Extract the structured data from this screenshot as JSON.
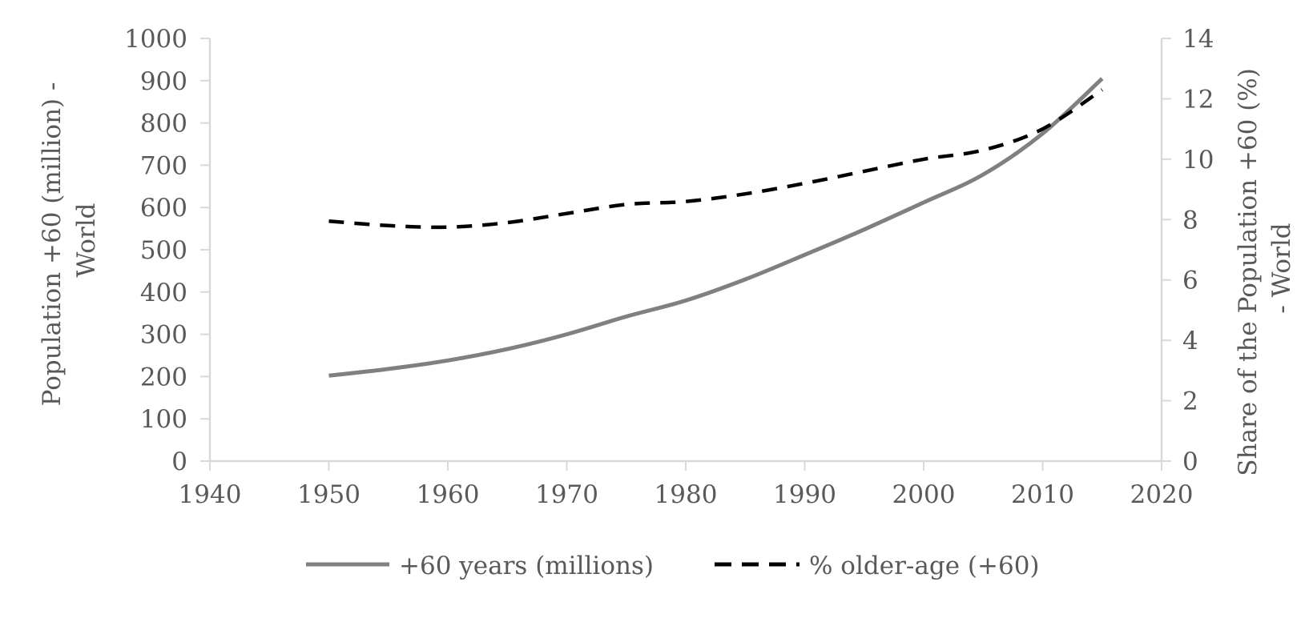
{
  "chart_data": {
    "type": "line",
    "title": "",
    "x_axis": {
      "label": "",
      "range": [
        1940,
        2020
      ],
      "ticks": [
        1940,
        1950,
        1960,
        1970,
        1980,
        1990,
        2000,
        2010,
        2020
      ]
    },
    "y_axis_left": {
      "label_lines": [
        "Population +60 (million) -",
        "World"
      ],
      "range": [
        0,
        1000
      ],
      "ticks": [
        0,
        100,
        200,
        300,
        400,
        500,
        600,
        700,
        800,
        900,
        1000
      ]
    },
    "y_axis_right": {
      "label_lines": [
        "Share of the Population +60 (%)",
        "- World"
      ],
      "range": [
        0,
        14
      ],
      "ticks": [
        0,
        2,
        4,
        6,
        8,
        10,
        12,
        14
      ]
    },
    "grid": false,
    "legend_position": "bottom",
    "series": [
      {
        "name": "+60 years (millions)",
        "axis": "left",
        "style": "solid",
        "color": "#808080",
        "x": [
          1950,
          1955,
          1960,
          1965,
          1970,
          1975,
          1980,
          1985,
          1990,
          1995,
          2000,
          2005,
          2010,
          2015
        ],
        "values": [
          202,
          218,
          238,
          265,
          300,
          342,
          380,
          430,
          488,
          548,
          612,
          678,
          775,
          905
        ]
      },
      {
        "name": "% older-age (+60)",
        "axis": "right",
        "style": "dashed",
        "color": "#000000",
        "x": [
          1950,
          1955,
          1960,
          1965,
          1970,
          1975,
          1980,
          1985,
          1990,
          1995,
          2000,
          2005,
          2010,
          2015
        ],
        "values": [
          7.95,
          7.8,
          7.75,
          7.9,
          8.2,
          8.5,
          8.6,
          8.85,
          9.2,
          9.6,
          10.0,
          10.3,
          11.0,
          12.3
        ]
      }
    ]
  }
}
